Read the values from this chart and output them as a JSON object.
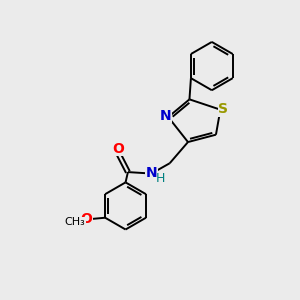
{
  "bg_color": "#ebebeb",
  "bond_color": "#000000",
  "atom_colors": {
    "N": "#0000cc",
    "O": "#ff0000",
    "S": "#999900",
    "H_color": "#008080"
  },
  "font_size_atom": 10,
  "font_size_small": 8,
  "lw": 1.4
}
